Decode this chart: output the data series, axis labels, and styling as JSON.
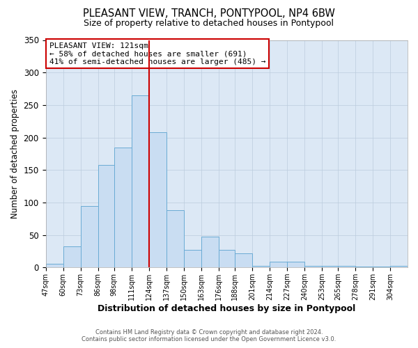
{
  "title": "PLEASANT VIEW, TRANCH, PONTYPOOL, NP4 6BW",
  "subtitle": "Size of property relative to detached houses in Pontypool",
  "xlabel": "Distribution of detached houses by size in Pontypool",
  "ylabel": "Number of detached properties",
  "bar_labels": [
    "47sqm",
    "60sqm",
    "73sqm",
    "86sqm",
    "98sqm",
    "111sqm",
    "124sqm",
    "137sqm",
    "150sqm",
    "163sqm",
    "176sqm",
    "188sqm",
    "201sqm",
    "214sqm",
    "227sqm",
    "240sqm",
    "253sqm",
    "265sqm",
    "278sqm",
    "291sqm",
    "304sqm"
  ],
  "bar_values": [
    6,
    32,
    95,
    158,
    184,
    265,
    208,
    88,
    27,
    47,
    27,
    22,
    2,
    9,
    9,
    2,
    2,
    3,
    1,
    1,
    2
  ],
  "bar_color": "#c9ddf2",
  "bar_edgecolor": "#6aabd4",
  "bin_edges": [
    47,
    60,
    73,
    86,
    98,
    111,
    124,
    137,
    150,
    163,
    176,
    188,
    201,
    214,
    227,
    240,
    253,
    265,
    278,
    291,
    304,
    317
  ],
  "ylim": [
    0,
    350
  ],
  "yticks": [
    0,
    50,
    100,
    150,
    200,
    250,
    300,
    350
  ],
  "annotation_title": "PLEASANT VIEW: 121sqm",
  "annotation_line1": "← 58% of detached houses are smaller (691)",
  "annotation_line2": "41% of semi-detached houses are larger (485) →",
  "vline_color": "#cc0000",
  "annotation_box_edgecolor": "#cc0000",
  "footer1": "Contains HM Land Registry data © Crown copyright and database right 2024.",
  "footer2": "Contains public sector information licensed under the Open Government Licence v3.0.",
  "background_color": "#ffffff",
  "plot_bg_color": "#dce8f5",
  "grid_color": "#bbccdd"
}
